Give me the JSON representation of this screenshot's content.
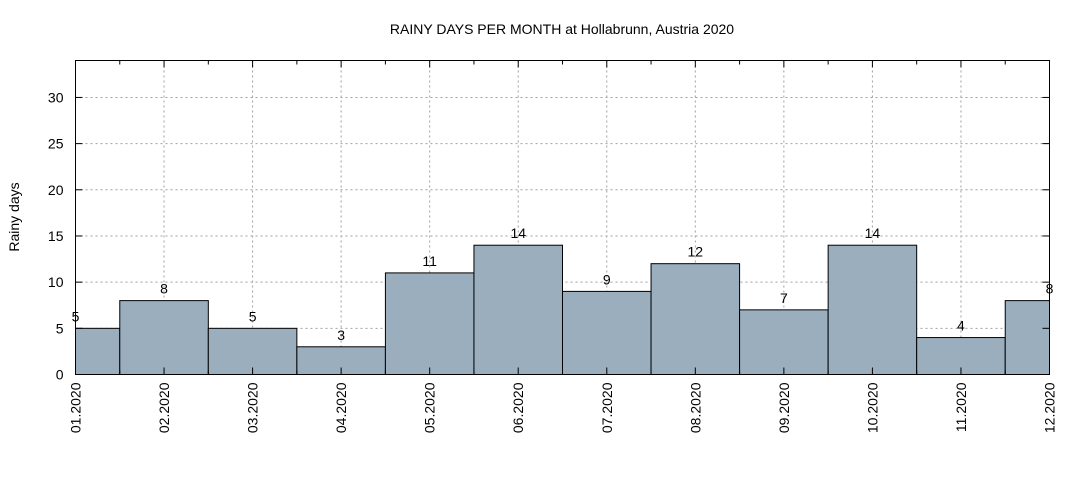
{
  "chart_data": {
    "type": "bar",
    "title": "RAINY DAYS PER MONTH at Hollabrunn, Austria 2020",
    "xlabel": "",
    "ylabel": "Rainy days",
    "categories": [
      "01.2020",
      "02.2020",
      "03.2020",
      "04.2020",
      "05.2020",
      "06.2020",
      "07.2020",
      "08.2020",
      "09.2020",
      "10.2020",
      "11.2020",
      "12.2020"
    ],
    "values": [
      5,
      8,
      5,
      3,
      11,
      14,
      9,
      12,
      7,
      14,
      4,
      8
    ],
    "ylim": [
      0,
      34
    ],
    "yticks": [
      0,
      5,
      10,
      15,
      20,
      25,
      30
    ],
    "grid": true,
    "bar_color": "#9aaebe"
  }
}
